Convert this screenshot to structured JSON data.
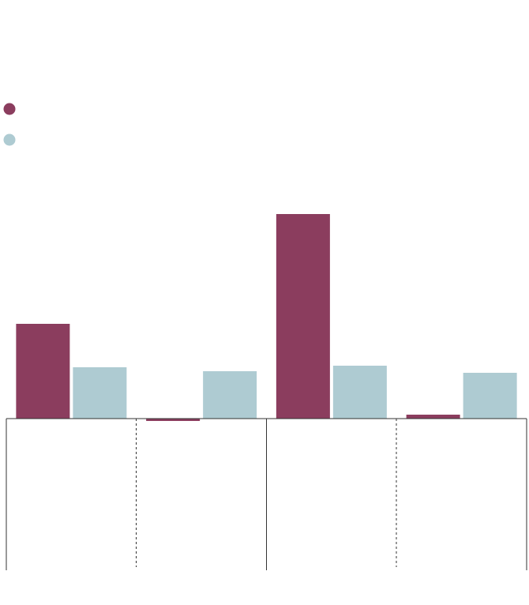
{
  "chart_data": {
    "type": "bar",
    "categories": [
      null,
      null,
      null,
      null
    ],
    "series": [
      {
        "color": "#8b3d5e",
        "values": [
          120,
          -3,
          259,
          5
        ]
      },
      {
        "color": "#aecbd2",
        "values": [
          65,
          60,
          67,
          58
        ]
      }
    ],
    "ylim": [
      -190,
      290
    ]
  }
}
